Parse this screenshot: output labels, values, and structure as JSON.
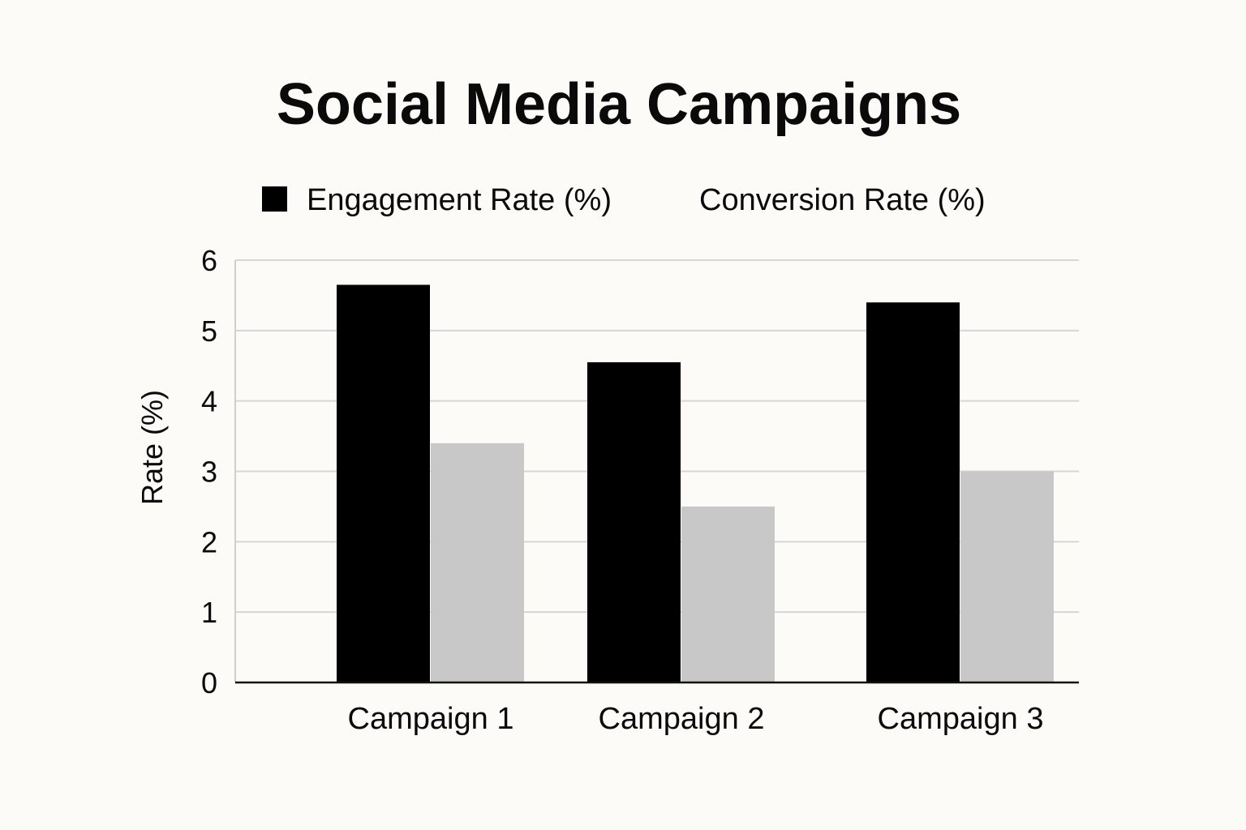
{
  "chart_data": {
    "type": "bar",
    "title": "Social Media Campaigns",
    "xlabel": "",
    "ylabel": "Rate (%)",
    "ylim": [
      0,
      6
    ],
    "yticks": [
      0,
      1,
      2,
      3,
      4,
      5,
      6
    ],
    "grid": true,
    "legend_position": "top",
    "categories": [
      "Campaign 1",
      "Campaign 2",
      "Campaign 3"
    ],
    "series": [
      {
        "name": "Engagement Rate (%)",
        "color": "#000000",
        "values": [
          5.65,
          4.55,
          5.4
        ]
      },
      {
        "name": "Conversion Rate (%)",
        "color": "#c8c8c8",
        "values": [
          3.4,
          2.5,
          3.0
        ]
      }
    ]
  }
}
